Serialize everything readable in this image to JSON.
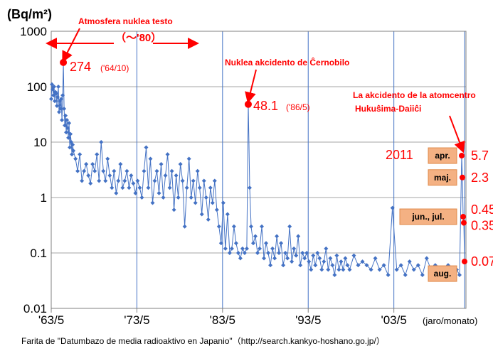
{
  "chart_data": {
    "type": "line",
    "y_scale": "log",
    "ylim": [
      0.01,
      1000
    ],
    "xlim": [
      "1963-05",
      "2011-10"
    ],
    "ylabel": "(Bq/m²)",
    "y_tick_labels": [
      "1000",
      "100",
      "10",
      "1",
      "0.1",
      "0.01"
    ],
    "x_tick_labels": [
      "'63/5",
      "'73/5",
      "'83/5",
      "'93/5",
      "'03/5"
    ],
    "x_unit_label": "(jaro/monato)",
    "grid": true,
    "series_color": "#4472c4",
    "highlight_color": "#ff0000",
    "source_text": "Farita de \"Datumbazo de media radioaktivo en Japanio\"（http://search.kankyo-hoshano.go.jp/）",
    "annotations": {
      "atmospheric": {
        "title": "Atmosfera nuklea testo",
        "range": "（～'80）",
        "peak_value": "274",
        "peak_date": "('64/10)"
      },
      "chernobyl": {
        "title": "Nuklea akcidento de Ĉernobilo",
        "peak_value": "48.1",
        "peak_date": "('86/5)"
      },
      "fukushima": {
        "title_line1": "La akcidento de la atomcentro",
        "title_line2": "Hukuŝima-Daiiĉi",
        "year": "2011"
      }
    },
    "highlight_points": [
      {
        "x": "1964-10",
        "y": 274
      },
      {
        "x": "1986-05",
        "y": 48.1
      },
      {
        "x": "2011-04",
        "y": 5.7,
        "month_label": "apr.",
        "value_label": "5.7"
      },
      {
        "x": "2011-05",
        "y": 2.3,
        "month_label": "maj.",
        "value_label": "2.3"
      },
      {
        "x": "2011-06",
        "y": 0.45,
        "month_label": "jun., jul.",
        "value_label": "0.45"
      },
      {
        "x": "2011-07",
        "y": 0.35,
        "value_label": "0.35"
      },
      {
        "x": "2011-08",
        "y": 0.07,
        "month_label": "aug.",
        "value_label": "0.07"
      }
    ],
    "series": [
      {
        "x": [
          "1963-05",
          "1963-06",
          "1963-07",
          "1963-08",
          "1963-09",
          "1963-10",
          "1963-11",
          "1963-12",
          "1964-01",
          "1964-02",
          "1964-03",
          "1964-04",
          "1964-05",
          "1964-06",
          "1964-07",
          "1964-08",
          "1964-09",
          "1964-10",
          "1964-11",
          "1964-12",
          "1965-01",
          "1965-02",
          "1965-03",
          "1965-04",
          "1965-05",
          "1965-06",
          "1965-07",
          "1965-08",
          "1965-09",
          "1965-10",
          "1965-11",
          "1965-12",
          "1966-03",
          "1966-06",
          "1966-09",
          "1966-12",
          "1967-03",
          "1967-06",
          "1967-09",
          "1967-12",
          "1968-03",
          "1968-06",
          "1968-09",
          "1968-12",
          "1969-03",
          "1969-06",
          "1969-09",
          "1969-12",
          "1970-03",
          "1970-06",
          "1970-09",
          "1970-12",
          "1971-03",
          "1971-06",
          "1971-09",
          "1971-12",
          "1972-03",
          "1972-06",
          "1972-09",
          "1972-12",
          "1973-03",
          "1973-06",
          "1973-09",
          "1973-12",
          "1974-03",
          "1974-06",
          "1974-09",
          "1974-12",
          "1975-03",
          "1975-06",
          "1975-09",
          "1975-12",
          "1976-03",
          "1976-06",
          "1976-09",
          "1976-12",
          "1977-03",
          "1977-06",
          "1977-09",
          "1977-12",
          "1978-03",
          "1978-06",
          "1978-09",
          "1978-12",
          "1979-03",
          "1979-06",
          "1979-09",
          "1979-12",
          "1980-03",
          "1980-06",
          "1980-09",
          "1980-12",
          "1981-03",
          "1981-06",
          "1981-09",
          "1981-12",
          "1982-03",
          "1982-06",
          "1982-09",
          "1982-12",
          "1983-03",
          "1983-06",
          "1983-09",
          "1983-12",
          "1984-03",
          "1984-06",
          "1984-09",
          "1984-12",
          "1985-03",
          "1985-06",
          "1985-09",
          "1985-12",
          "1986-03",
          "1986-05",
          "1986-07",
          "1986-09",
          "1986-12",
          "1987-03",
          "1987-06",
          "1987-09",
          "1987-12",
          "1988-03",
          "1988-06",
          "1988-09",
          "1988-12",
          "1989-03",
          "1989-06",
          "1989-09",
          "1989-12",
          "1990-03",
          "1990-06",
          "1990-09",
          "1990-12",
          "1991-03",
          "1991-06",
          "1991-09",
          "1991-12",
          "1992-03",
          "1992-06",
          "1992-09",
          "1992-12",
          "1993-03",
          "1993-06",
          "1993-09",
          "1993-12",
          "1994-03",
          "1994-06",
          "1994-09",
          "1994-12",
          "1995-03",
          "1995-06",
          "1995-09",
          "1995-12",
          "1996-03",
          "1996-06",
          "1996-09",
          "1996-12",
          "1997-03",
          "1997-06",
          "1997-09",
          "1997-12",
          "1998-03",
          "1998-09",
          "1999-03",
          "1999-09",
          "2000-03",
          "2000-09",
          "2001-03",
          "2001-09",
          "2002-03",
          "2002-09",
          "2003-03",
          "2003-09",
          "2004-03",
          "2004-09",
          "2005-03",
          "2005-09",
          "2006-03",
          "2006-09",
          "2007-03",
          "2007-09",
          "2008-03",
          "2008-09",
          "2009-03",
          "2009-09",
          "2010-03",
          "2010-09",
          "2011-01",
          "2011-04",
          "2011-05",
          "2011-06",
          "2011-07",
          "2011-08"
        ],
        "y": [
          60,
          110,
          90,
          70,
          100,
          55,
          80,
          75,
          45,
          65,
          100,
          35,
          55,
          40,
          60,
          25,
          70,
          274,
          40,
          20,
          30,
          15,
          25,
          18,
          12,
          22,
          8,
          14,
          10,
          6,
          9,
          7,
          5,
          3,
          6,
          2,
          3,
          4,
          2.5,
          1.8,
          4,
          3,
          6,
          2,
          10,
          3,
          2,
          5,
          2.5,
          1.5,
          3,
          1.2,
          2,
          4,
          1.5,
          2,
          3,
          1.5,
          2.5,
          1.8,
          1.2,
          2,
          1.5,
          1,
          3,
          8,
          1.5,
          5,
          0.8,
          2,
          3,
          1.2,
          4,
          1,
          2.5,
          6,
          1.5,
          3,
          0.6,
          2.5,
          1,
          4,
          2,
          0.3,
          1.5,
          5,
          1,
          2,
          0.8,
          3,
          1.5,
          0.5,
          2,
          1,
          0.4,
          1.5,
          0.8,
          2,
          0.6,
          0.3,
          0.15,
          0.8,
          0.12,
          0.5,
          0.1,
          0.12,
          0.3,
          0.15,
          0.1,
          0.08,
          0.12,
          0.1,
          0.12,
          48.1,
          1.5,
          0.3,
          0.15,
          0.2,
          0.1,
          0.12,
          0.3,
          0.08,
          0.15,
          0.1,
          0.06,
          0.12,
          0.08,
          0.2,
          0.1,
          0.15,
          0.06,
          0.1,
          0.08,
          0.3,
          0.07,
          0.12,
          0.09,
          0.2,
          0.06,
          0.1,
          0.08,
          0.1,
          0.07,
          0.05,
          0.09,
          0.06,
          0.1,
          0.08,
          0.05,
          0.07,
          0.12,
          0.05,
          0.08,
          0.06,
          0.04,
          0.09,
          0.05,
          0.07,
          0.05,
          0.08,
          0.06,
          0.05,
          0.09,
          0.06,
          0.07,
          0.06,
          0.05,
          0.08,
          0.05,
          0.06,
          0.04,
          0.65,
          0.05,
          0.06,
          0.04,
          0.07,
          0.05,
          0.06,
          0.04,
          0.08,
          0.05,
          0.06,
          0.04,
          0.05,
          0.06,
          0.04,
          0.05,
          0.04,
          5.7,
          2.3,
          0.45,
          0.35,
          0.07
        ]
      }
    ]
  }
}
